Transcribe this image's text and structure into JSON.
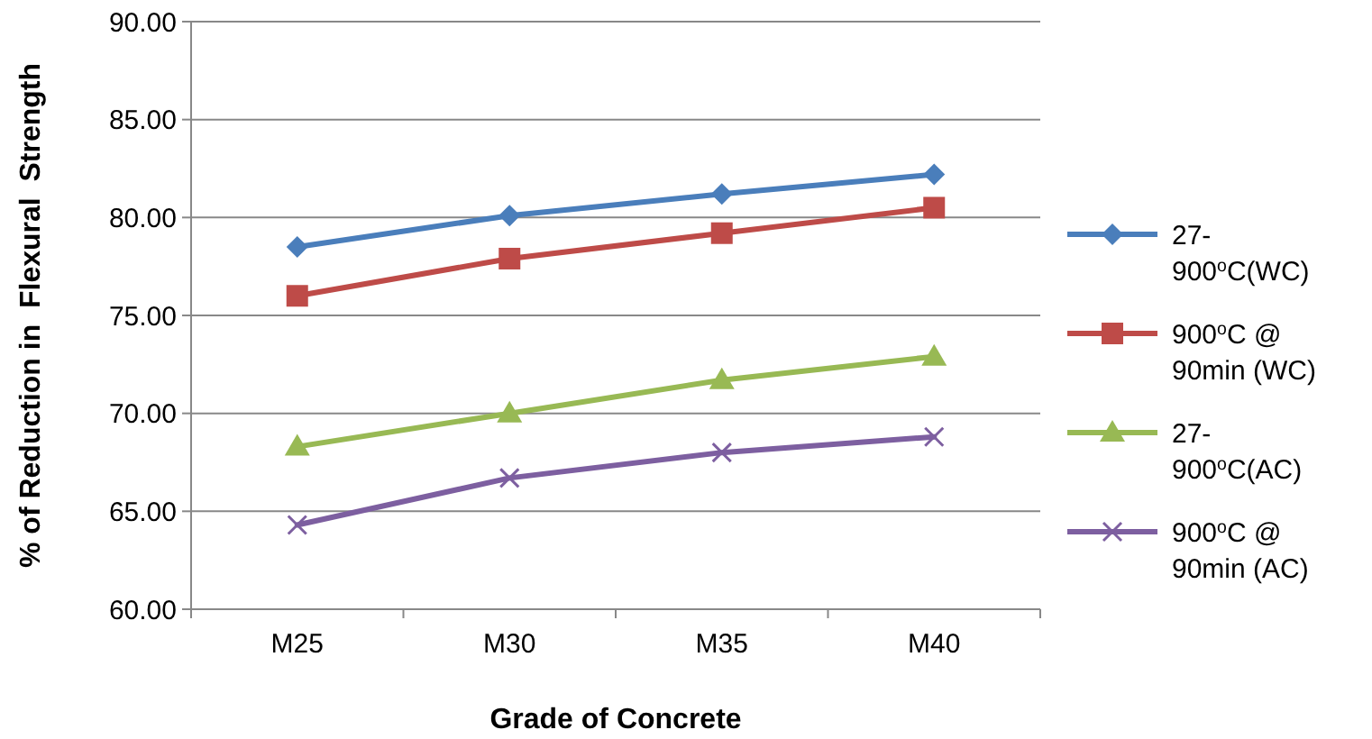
{
  "chart_data": {
    "type": "line",
    "xlabel": "Grade of Concrete",
    "ylabel": "% of Reduction in  Flexural  Strength",
    "categories": [
      "M25",
      "M30",
      "M35",
      "M40"
    ],
    "series": [
      {
        "name": "27-900$^{o}$C(WC)",
        "color": "#4a7ebb",
        "marker": "diamond",
        "values": [
          78.5,
          80.1,
          81.2,
          82.2
        ]
      },
      {
        "name": "900$^{o}$C @ 90min (WC)",
        "color": "#be4b48",
        "marker": "square",
        "values": [
          76.0,
          77.9,
          79.2,
          80.5
        ]
      },
      {
        "name": "27-900$^{o}$C(AC)",
        "color": "#98b954",
        "marker": "triangle",
        "values": [
          68.3,
          70.0,
          71.7,
          72.9
        ]
      },
      {
        "name": "900$^{o}$C @ 90min (AC)",
        "color": "#7d5fa0",
        "marker": "cross",
        "values": [
          64.3,
          66.7,
          68.0,
          68.8
        ]
      }
    ],
    "ylim": [
      60,
      90
    ],
    "yticks": [
      {
        "value": 60,
        "label": "60.00"
      },
      {
        "value": 65,
        "label": "65.00"
      },
      {
        "value": 70,
        "label": "70.00"
      },
      {
        "value": 75,
        "label": "75.00"
      },
      {
        "value": 80,
        "label": "80.00"
      },
      {
        "value": 85,
        "label": "85.00"
      },
      {
        "value": 90,
        "label": "90.00"
      }
    ],
    "grid": "y",
    "legend": "right",
    "line_style": "solid"
  }
}
